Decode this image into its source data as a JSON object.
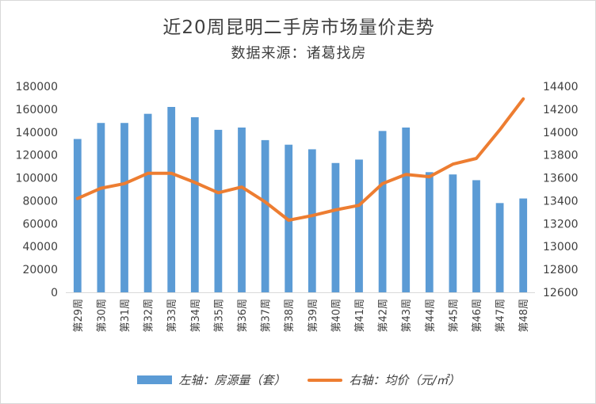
{
  "chart_data": {
    "type": "bar+line",
    "title": "近20周昆明二手房市场量价走势",
    "subtitle": "数据来源：诸葛找房",
    "categories": [
      "第29周",
      "第30周",
      "第31周",
      "第32周",
      "第33周",
      "第34周",
      "第35周",
      "第36周",
      "第37周",
      "第38周",
      "第39周",
      "第40周",
      "第41周",
      "第42周",
      "第43周",
      "第44周",
      "第45周",
      "第46周",
      "第47周",
      "第48周"
    ],
    "series": [
      {
        "name": "左轴：房源量（套）",
        "type": "bar",
        "axis": "left",
        "color": "#5b9bd5",
        "values": [
          134000,
          148000,
          148000,
          156000,
          162000,
          153000,
          142000,
          144000,
          133000,
          129000,
          125000,
          113000,
          116000,
          141000,
          144000,
          105000,
          103000,
          98000,
          78000,
          82000
        ]
      },
      {
        "name": "右轴：均价（元/㎡）",
        "type": "line",
        "axis": "right",
        "color": "#ed7d31",
        "values": [
          13420,
          13510,
          13550,
          13640,
          13640,
          13560,
          13470,
          13520,
          13390,
          13230,
          13270,
          13320,
          13360,
          13550,
          13630,
          13610,
          13720,
          13770,
          14020,
          14290
        ]
      }
    ],
    "y_left": {
      "min": 0,
      "max": 180000,
      "ticks": [
        "0",
        "20000",
        "40000",
        "60000",
        "80000",
        "100000",
        "120000",
        "140000",
        "160000",
        "180000"
      ]
    },
    "y_right": {
      "min": 12600,
      "max": 14400,
      "ticks": [
        "12600",
        "12800",
        "13000",
        "13200",
        "13400",
        "13600",
        "13800",
        "14000",
        "14200",
        "14400"
      ]
    },
    "legend_position": "bottom",
    "grid": false
  }
}
